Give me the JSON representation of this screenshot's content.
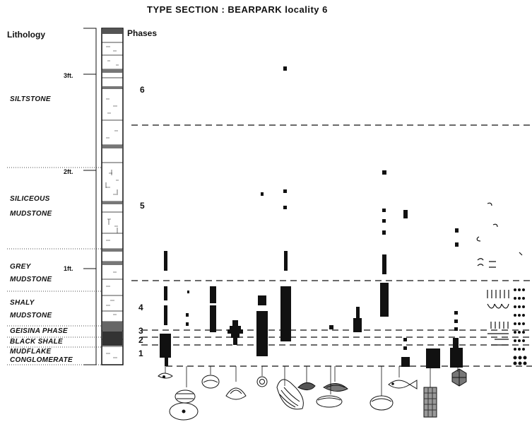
{
  "title": "TYPE SECTION : BEARPARK locality 6",
  "headers": {
    "lithology": "Lithology",
    "phases": "Phases"
  },
  "scale_labels": [
    "3ft.",
    "2ft.",
    "1ft."
  ],
  "lithology_units": [
    {
      "lines": [
        "SILTSTONE"
      ]
    },
    {
      "lines": [
        "SILICEOUS",
        "MUDSTONE"
      ]
    },
    {
      "lines": [
        "GREY",
        "MUDSTONE"
      ]
    },
    {
      "lines": [
        "SHALY",
        "MUDSTONE"
      ]
    },
    {
      "lines": [
        "GEISINA PHASE"
      ]
    },
    {
      "lines": [
        "BLACK SHALE"
      ]
    },
    {
      "lines": [
        "MUDFLAKE",
        "CONGLOMERATE"
      ]
    }
  ],
  "phases": [
    "6",
    "5",
    "4",
    "3",
    "2",
    "1"
  ],
  "fossil_icons": [
    "shell-icon",
    "clam-icon",
    "bivalve-icon",
    "snail-icon",
    "mussel-icon",
    "pebble-icon",
    "clam-icon",
    "bivalve-icon",
    "fish-icon",
    "coprolite-icon",
    "plant-icon"
  ],
  "colors": {
    "ink": "#111111",
    "paper": "#ffffff"
  }
}
